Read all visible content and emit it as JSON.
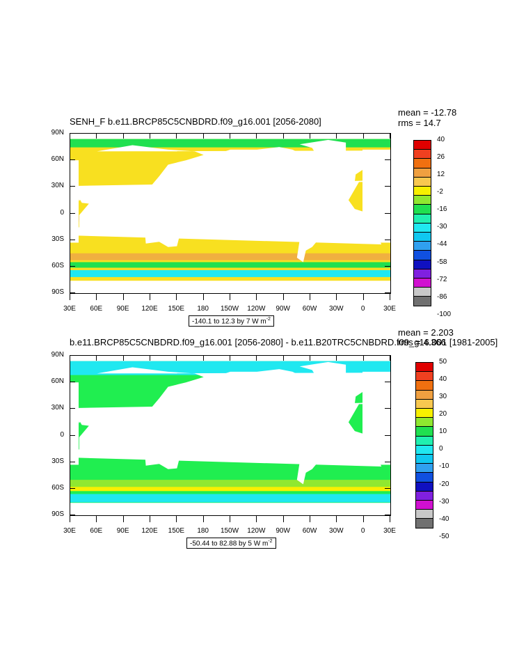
{
  "panels": [
    {
      "id": "top",
      "title": "SENH_F b.e11.BRCP85C5CNBDRD.f09_g16.001 [2056-2080]",
      "mean": "mean = -12.78",
      "rms": "rms = 14.7",
      "range_text": "-140.1 to 12.3 by 7  W m",
      "range_sup": "-2",
      "lat_labels": [
        "90N",
        "60N",
        "30N",
        "0",
        "30S",
        "60S",
        "90S"
      ],
      "lon_labels": [
        "30E",
        "60E",
        "90E",
        "120E",
        "150E",
        "180",
        "150W",
        "120W",
        "90W",
        "60W",
        "30W",
        "0",
        "30E"
      ],
      "colorbar_labels": [
        "40",
        "26",
        "12",
        "-2",
        "-16",
        "-30",
        "-44",
        "-58",
        "-72",
        "-86",
        "-100"
      ],
      "colorbar_colors": [
        "#e00000",
        "#f04020",
        "#f07010",
        "#f0a040",
        "#f8c850",
        "#f8f000",
        "#90e830",
        "#20e050",
        "#20f0b0",
        "#20e8f0",
        "#10c8f0",
        "#30a0f0",
        "#1050e0",
        "#1010c0",
        "#8020e0",
        "#d010d0",
        "#c8c8c8",
        "#707070"
      ],
      "ocean_color": "#f8e020"
    },
    {
      "id": "bottom",
      "title": "b.e11.BRCP85C5CNBDRD.f09_g16.001 [2056-2080] - b.e11.B20TRC5CNBDRD.f09_g16.001 [1981-2005]",
      "mean": "mean = 2.203",
      "rms": "rms = 4.366",
      "range_text": "-50.44 to 82.88 by 5  W m",
      "range_sup": "-2",
      "lat_labels": [
        "90N",
        "60N",
        "30N",
        "0",
        "30S",
        "60S",
        "90S"
      ],
      "lon_labels": [
        "30E",
        "60E",
        "90E",
        "120E",
        "150E",
        "180",
        "150W",
        "120W",
        "90W",
        "60W",
        "30W",
        "0",
        "30E"
      ],
      "colorbar_labels": [
        "50",
        "40",
        "30",
        "20",
        "10",
        "0",
        "-10",
        "-20",
        "-30",
        "-40",
        "-50"
      ],
      "colorbar_colors": [
        "#e00000",
        "#f04020",
        "#f07010",
        "#f0a040",
        "#f8c850",
        "#f8f000",
        "#90e830",
        "#20e050",
        "#20f0b0",
        "#20e8f0",
        "#10c8f0",
        "#30a0f0",
        "#1050e0",
        "#1010c0",
        "#8020e0",
        "#d010d0",
        "#c8c8c8",
        "#707070"
      ],
      "ocean_color": "#20ee50"
    }
  ]
}
